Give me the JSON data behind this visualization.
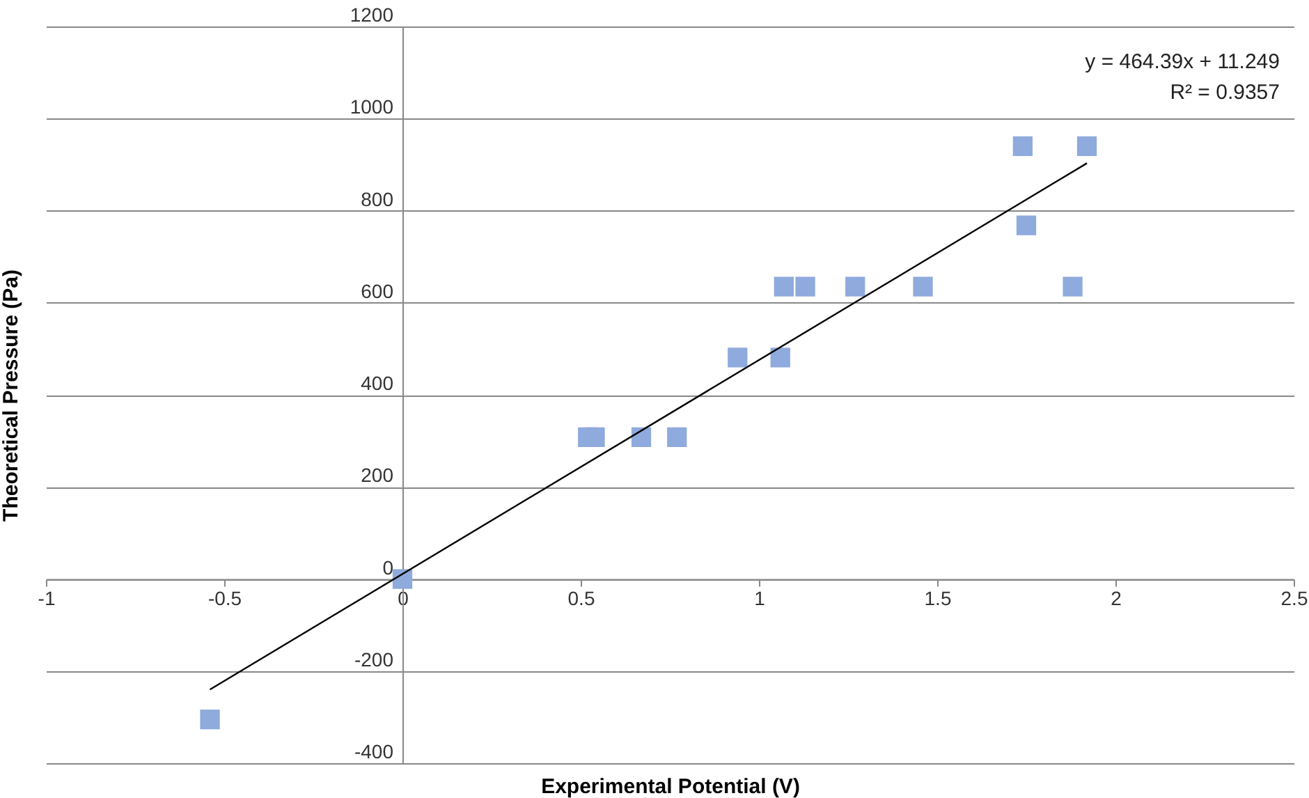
{
  "chart_data": {
    "type": "scatter",
    "xlabel": "Experimental Potential (V)",
    "ylabel": "Theoretical Pressure (Pa)",
    "xlim": [
      -1,
      2.5
    ],
    "xticks": [
      -1,
      -0.5,
      0,
      0.5,
      1,
      1.5,
      2,
      2.5
    ],
    "ylim": [
      -400,
      1200
    ],
    "yticks": [
      -400,
      -200,
      0,
      200,
      400,
      600,
      800,
      1000,
      1200
    ],
    "grid": "y",
    "marker": "square",
    "series": [
      {
        "type": "scatter",
        "color": "#8faadc",
        "x": [
          -0.54,
          0,
          0.52,
          0.54,
          0.67,
          0.77,
          0.94,
          1.06,
          1.07,
          1.13,
          1.27,
          1.46,
          1.74,
          1.75,
          1.88,
          1.92
        ],
        "values": [
          -305,
          0,
          308,
          308,
          308,
          308,
          481,
          481,
          635,
          635,
          635,
          635,
          940,
          768,
          635,
          940
        ]
      },
      {
        "type": "line",
        "color": "#000000",
        "x": [
          -0.54,
          1.92
        ],
        "values": [
          -240,
          903
        ],
        "marker": "none"
      }
    ],
    "annotations": [
      "y = 464.39x + 11.249",
      "R² = 0.9357"
    ]
  }
}
